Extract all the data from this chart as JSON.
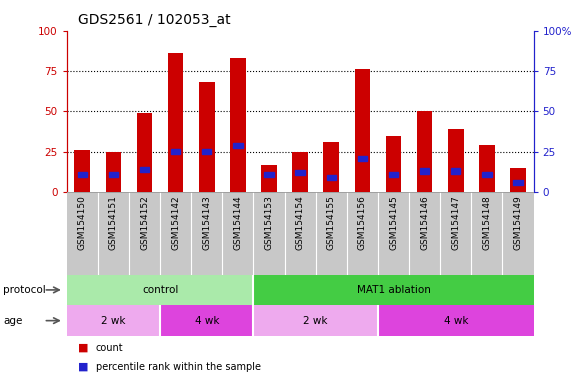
{
  "title": "GDS2561 / 102053_at",
  "samples": [
    "GSM154150",
    "GSM154151",
    "GSM154152",
    "GSM154142",
    "GSM154143",
    "GSM154144",
    "GSM154153",
    "GSM154154",
    "GSM154155",
    "GSM154156",
    "GSM154145",
    "GSM154146",
    "GSM154147",
    "GSM154148",
    "GSM154149"
  ],
  "count_values": [
    26,
    25,
    49,
    86,
    68,
    83,
    17,
    25,
    31,
    76,
    35,
    50,
    39,
    29,
    15
  ],
  "percentile_values": [
    11,
    11,
    14,
    25,
    25,
    29,
    11,
    12,
    9,
    21,
    11,
    13,
    13,
    11,
    6
  ],
  "bar_color": "#cc0000",
  "blue_color": "#2222cc",
  "ylim": [
    0,
    100
  ],
  "yticks": [
    0,
    25,
    50,
    75,
    100
  ],
  "protocol_groups": [
    {
      "label": "control",
      "start": 0,
      "end": 6,
      "color": "#aaeaaa"
    },
    {
      "label": "MAT1 ablation",
      "start": 6,
      "end": 15,
      "color": "#44cc44"
    }
  ],
  "age_groups": [
    {
      "label": "2 wk",
      "start": 0,
      "end": 3,
      "color": "#eeaaee"
    },
    {
      "label": "4 wk",
      "start": 3,
      "end": 6,
      "color": "#dd44dd"
    },
    {
      "label": "2 wk",
      "start": 6,
      "end": 10,
      "color": "#eeaaee"
    },
    {
      "label": "4 wk",
      "start": 10,
      "end": 15,
      "color": "#dd44dd"
    }
  ],
  "protocol_label": "protocol",
  "age_label": "age",
  "legend_count_label": "count",
  "legend_pct_label": "percentile rank within the sample",
  "title_fontsize": 10,
  "tick_fontsize": 6.5,
  "label_fontsize": 8,
  "bar_width": 0.5,
  "gray_bg": "#c8c8c8"
}
